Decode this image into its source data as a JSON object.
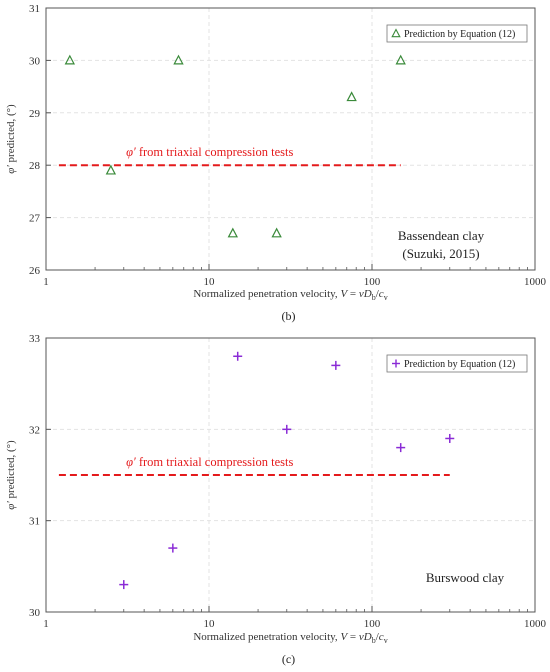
{
  "colors": {
    "green": "#3a8a3a",
    "purple": "#8a2bd6",
    "red": "#e41a1c",
    "grid": "#e3e3e3",
    "frame": "#555555"
  },
  "chart_data": [
    {
      "type": "scatter",
      "panel_label": "(b)",
      "xlabel": "Normalized penetration velocity, V = vDₜ/cᵥ",
      "xlabel_parts": {
        "prefix": "Normalized penetration velocity, ",
        "var": "V",
        "eq": " = ",
        "var2": "v",
        "D": "D",
        "Dsub": "b",
        "slash": "/",
        "c": "c",
        "csub": "v"
      },
      "ylabel_parts": {
        "phi": "φ′",
        "rest": " predicted, (°)"
      },
      "x_scale": "log",
      "xlim": [
        1,
        1000
      ],
      "ylim": [
        26,
        31
      ],
      "x_ticks": [
        1,
        10,
        100,
        1000
      ],
      "x_tick_labels": [
        "1",
        "10",
        "100",
        "1000"
      ],
      "y_ticks": [
        26,
        27,
        28,
        29,
        30,
        31
      ],
      "y_tick_labels": [
        "26",
        "27",
        "28",
        "29",
        "30",
        "31"
      ],
      "grid": true,
      "legend_position": "top-right",
      "series": [
        {
          "name": "Prediction by Equation (12)",
          "marker": "triangle",
          "x": [
            1.4,
            2.5,
            6.5,
            14,
            26,
            75,
            150
          ],
          "y": [
            30.0,
            27.9,
            30.0,
            26.7,
            26.7,
            29.3,
            30.0
          ]
        }
      ],
      "reference_line": {
        "y": 28.0,
        "x_range": [
          1.2,
          150
        ],
        "label_phi": "φ′",
        "label_rest": " from triaxial compression tests"
      },
      "annotation_lines": [
        "Bassendean clay",
        "(Suzuki, 2015)"
      ]
    },
    {
      "type": "scatter",
      "panel_label": "(c)",
      "xlabel_parts": {
        "prefix": "Normalized penetration velocity, ",
        "var": "V",
        "eq": " = ",
        "var2": "v",
        "D": "D",
        "Dsub": "b",
        "slash": "/",
        "c": "c",
        "csub": "v"
      },
      "ylabel_parts": {
        "phi": "φ′",
        "rest": " predicted, (°)"
      },
      "x_scale": "log",
      "xlim": [
        1,
        1000
      ],
      "ylim": [
        30,
        33
      ],
      "x_ticks": [
        1,
        10,
        100,
        1000
      ],
      "x_tick_labels": [
        "1",
        "10",
        "100",
        "1000"
      ],
      "y_ticks": [
        30,
        31,
        32,
        33
      ],
      "y_tick_labels": [
        "30",
        "31",
        "32",
        "33"
      ],
      "grid": true,
      "legend_position": "top-right",
      "series": [
        {
          "name": "Prediction by Equation (12)",
          "marker": "plus",
          "x": [
            3,
            6,
            15,
            30,
            60,
            150,
            300
          ],
          "y": [
            30.3,
            30.7,
            32.8,
            32.0,
            32.7,
            31.8,
            31.9
          ]
        }
      ],
      "reference_line": {
        "y": 31.5,
        "x_range": [
          1.2,
          300
        ],
        "label_phi": "φ′",
        "label_rest": " from triaxial compression tests"
      },
      "annotation_lines": [
        "Burswood clay"
      ]
    }
  ]
}
